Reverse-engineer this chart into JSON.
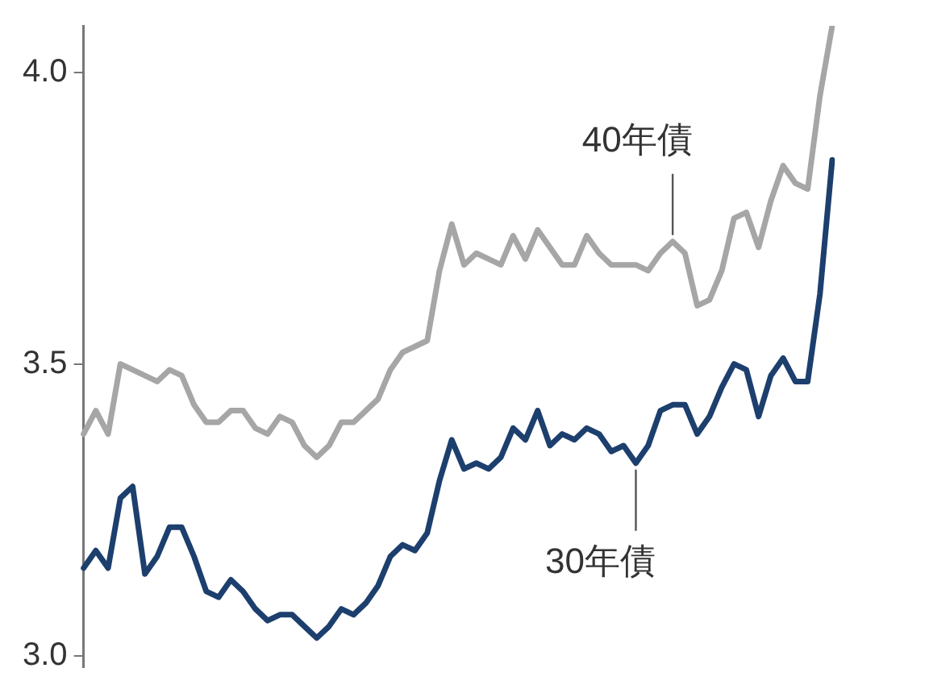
{
  "chart_data": {
    "type": "line",
    "categories": [
      null,
      null,
      null,
      null,
      null,
      null,
      null,
      null,
      null,
      null,
      null,
      null,
      null,
      null,
      null,
      null,
      null,
      null,
      null,
      null,
      null,
      null,
      null,
      null,
      null,
      null,
      null,
      null,
      null,
      null,
      null,
      null,
      null,
      null,
      null,
      null,
      null,
      null,
      null,
      null,
      null,
      null,
      null,
      null,
      null,
      null,
      null,
      null,
      null,
      null,
      null,
      null,
      null,
      null,
      null,
      null,
      null,
      null,
      null,
      null,
      null,
      null
    ],
    "series": [
      {
        "name": "40年債",
        "color": "#a6a6a6",
        "values": [
          3.38,
          3.42,
          3.38,
          3.5,
          3.49,
          3.48,
          3.47,
          3.49,
          3.48,
          3.43,
          3.4,
          3.4,
          3.42,
          3.42,
          3.39,
          3.38,
          3.41,
          3.4,
          3.36,
          3.34,
          3.36,
          3.4,
          3.4,
          3.42,
          3.44,
          3.49,
          3.52,
          3.53,
          3.54,
          3.66,
          3.74,
          3.67,
          3.69,
          3.68,
          3.67,
          3.72,
          3.68,
          3.73,
          3.7,
          3.67,
          3.67,
          3.72,
          3.69,
          3.67,
          3.67,
          3.67,
          3.66,
          3.69,
          3.71,
          3.69,
          3.6,
          3.61,
          3.66,
          3.75,
          3.76,
          3.7,
          3.78,
          3.84,
          3.81,
          3.8,
          3.96,
          4.08
        ]
      },
      {
        "name": "30年債",
        "color": "#1d3f6e",
        "values": [
          3.15,
          3.18,
          3.15,
          3.27,
          3.29,
          3.14,
          3.17,
          3.22,
          3.22,
          3.17,
          3.11,
          3.1,
          3.13,
          3.11,
          3.08,
          3.06,
          3.07,
          3.07,
          3.05,
          3.03,
          3.05,
          3.08,
          3.07,
          3.09,
          3.12,
          3.17,
          3.19,
          3.18,
          3.21,
          3.3,
          3.37,
          3.32,
          3.33,
          3.32,
          3.34,
          3.39,
          3.37,
          3.42,
          3.36,
          3.38,
          3.37,
          3.39,
          3.38,
          3.35,
          3.36,
          3.33,
          3.36,
          3.42,
          3.43,
          3.43,
          3.38,
          3.41,
          3.46,
          3.5,
          3.49,
          3.41,
          3.48,
          3.51,
          3.47,
          3.47,
          3.62,
          3.85
        ]
      }
    ],
    "ylim": [
      2.98,
      4.08
    ],
    "yticks": [
      {
        "value": 3,
        "label": "3.0"
      },
      3.5,
      {
        "value": 4,
        "label": "4.0"
      }
    ],
    "grid": false,
    "legend": false,
    "marker": "none",
    "line_style": "solid",
    "tick_labels": "y"
  }
}
